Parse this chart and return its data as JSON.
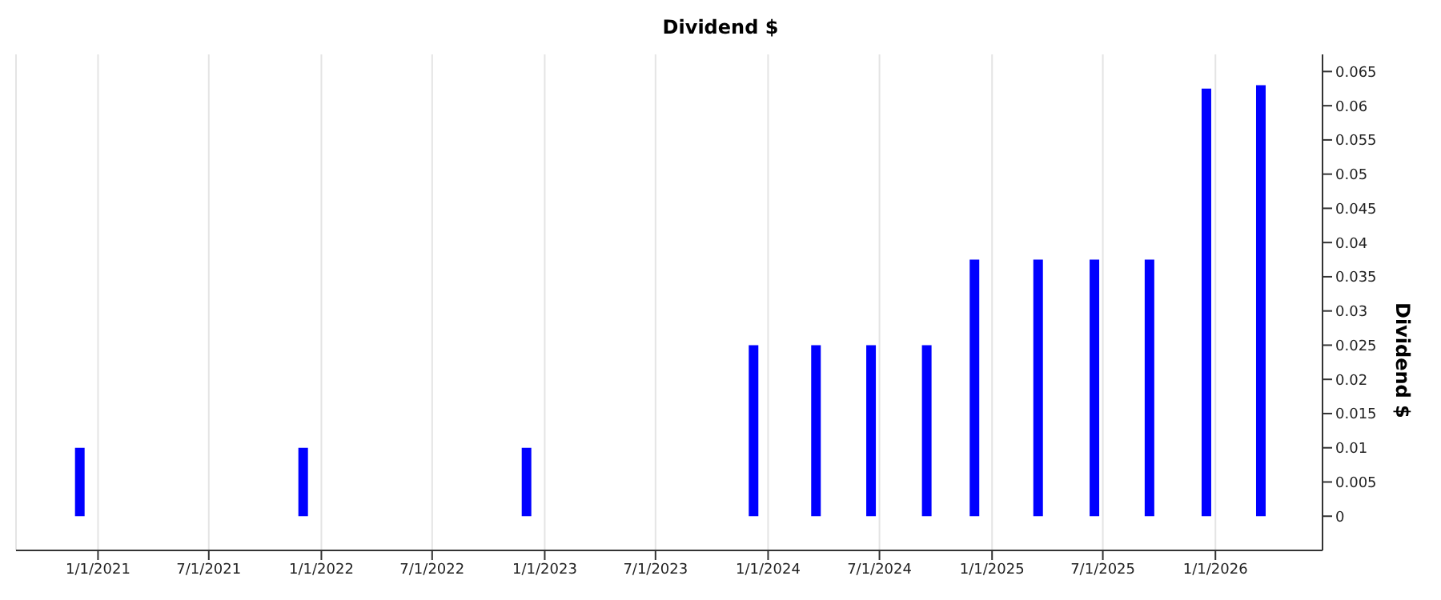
{
  "chart_data": {
    "type": "bar",
    "title": "Dividend $",
    "ylabel": "Dividend $",
    "x": [
      "2020-12-02",
      "2021-12-02",
      "2022-12-02",
      "2023-12-08",
      "2024-03-19",
      "2024-06-17",
      "2024-09-16",
      "2024-12-03",
      "2025-03-17",
      "2025-06-17",
      "2025-09-15",
      "2025-12-17",
      "2026-03-16"
    ],
    "series": [
      {
        "color": "#0000ff",
        "values": [
          0.01,
          0.01,
          0.01,
          0.025,
          0.025,
          0.025,
          0.025,
          0.0375,
          0.0375,
          0.0375,
          0.0375,
          0.0625,
          0.063
        ]
      }
    ],
    "xlim": [
      "2020-08-20",
      "2026-06-25"
    ],
    "xticks": [
      {
        "value": "2021-01-01",
        "label": "1/1/2021"
      },
      {
        "value": "2021-07-01",
        "label": "7/1/2021"
      },
      {
        "value": "2022-01-01",
        "label": "1/1/2022"
      },
      {
        "value": "2022-07-01",
        "label": "7/1/2022"
      },
      {
        "value": "2023-01-01",
        "label": "1/1/2023"
      },
      {
        "value": "2023-07-01",
        "label": "7/1/2023"
      },
      {
        "value": "2024-01-01",
        "label": "1/1/2024"
      },
      {
        "value": "2024-07-01",
        "label": "7/1/2024"
      },
      {
        "value": "2025-01-01",
        "label": "1/1/2025"
      },
      {
        "value": "2025-07-01",
        "label": "7/1/2025"
      },
      {
        "value": "2026-01-01",
        "label": "1/1/2026"
      }
    ],
    "ylim": [
      -0.005,
      0.0675
    ],
    "yticks": [
      0,
      0.005,
      0.01,
      0.015,
      0.02,
      0.025,
      0.03,
      0.035,
      0.04,
      0.045,
      0.05,
      0.055,
      0.06,
      0.065
    ],
    "grid": "x",
    "legend": false
  }
}
